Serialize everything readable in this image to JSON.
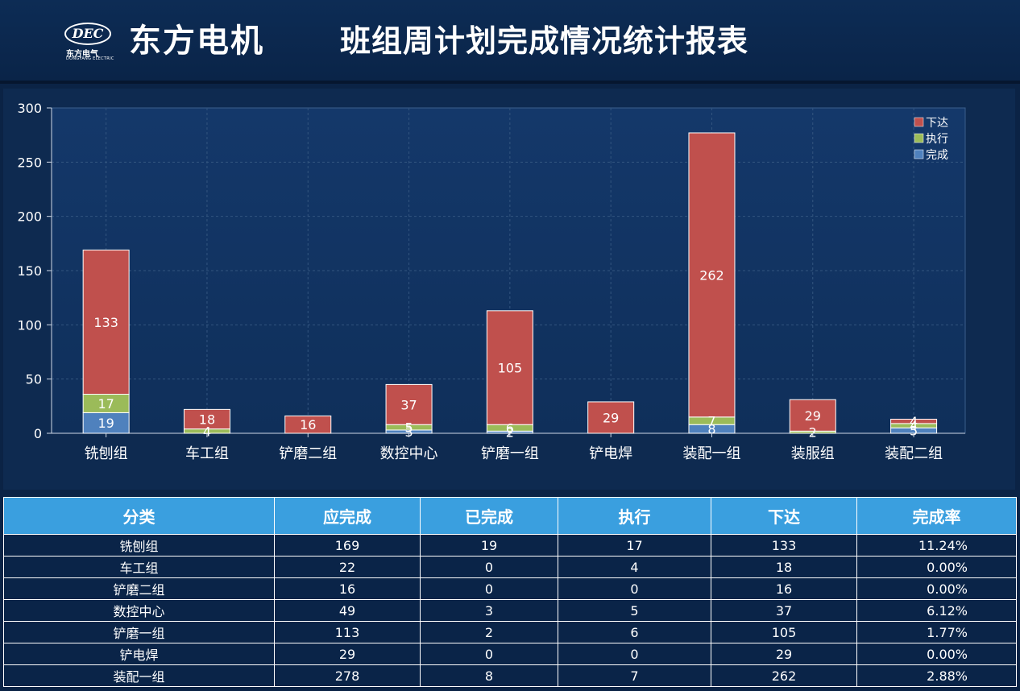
{
  "header": {
    "logo_text": "DEC",
    "logo_cn": "东方电气",
    "logo_en": "DONGFANG ELECTRIC",
    "brand": "东方电机",
    "title": "班组周计划完成情况统计报表"
  },
  "colors": {
    "xiada": "#c0504d",
    "zhixing": "#9bbb59",
    "wancheng": "#4f81bd",
    "table_header": "#3a9fdf",
    "background": "#0b2345"
  },
  "chart_data": {
    "type": "bar",
    "stacked": true,
    "categories": [
      "铣刨组",
      "车工组",
      "铲磨二组",
      "数控中心",
      "铲磨一组",
      "铲电焊",
      "装配一组",
      "装服组",
      "装配二组"
    ],
    "series": [
      {
        "name": "完成",
        "values": [
          19,
          0,
          0,
          3,
          2,
          0,
          8,
          0,
          5
        ]
      },
      {
        "name": "执行",
        "values": [
          17,
          4,
          0,
          5,
          6,
          0,
          7,
          2,
          4
        ]
      },
      {
        "name": "下达",
        "values": [
          133,
          18,
          16,
          37,
          105,
          29,
          262,
          29,
          4
        ]
      }
    ],
    "ylim": [
      0,
      300
    ],
    "yticks": [
      0,
      50,
      100,
      150,
      200,
      250,
      300
    ],
    "grid": true,
    "legend": "top-right",
    "legend_order": [
      "下达",
      "执行",
      "完成"
    ]
  },
  "table": {
    "headers": [
      "分类",
      "应完成",
      "已完成",
      "执行",
      "下达",
      "完成率"
    ],
    "rows": [
      [
        "铣刨组",
        "169",
        "19",
        "17",
        "133",
        "11.24%"
      ],
      [
        "车工组",
        "22",
        "0",
        "4",
        "18",
        "0.00%"
      ],
      [
        "铲磨二组",
        "16",
        "0",
        "0",
        "16",
        "0.00%"
      ],
      [
        "数控中心",
        "49",
        "3",
        "5",
        "37",
        "6.12%"
      ],
      [
        "铲磨一组",
        "113",
        "2",
        "6",
        "105",
        "1.77%"
      ],
      [
        "铲电焊",
        "29",
        "0",
        "0",
        "29",
        "0.00%"
      ],
      [
        "装配一组",
        "278",
        "8",
        "7",
        "262",
        "2.88%"
      ]
    ]
  }
}
